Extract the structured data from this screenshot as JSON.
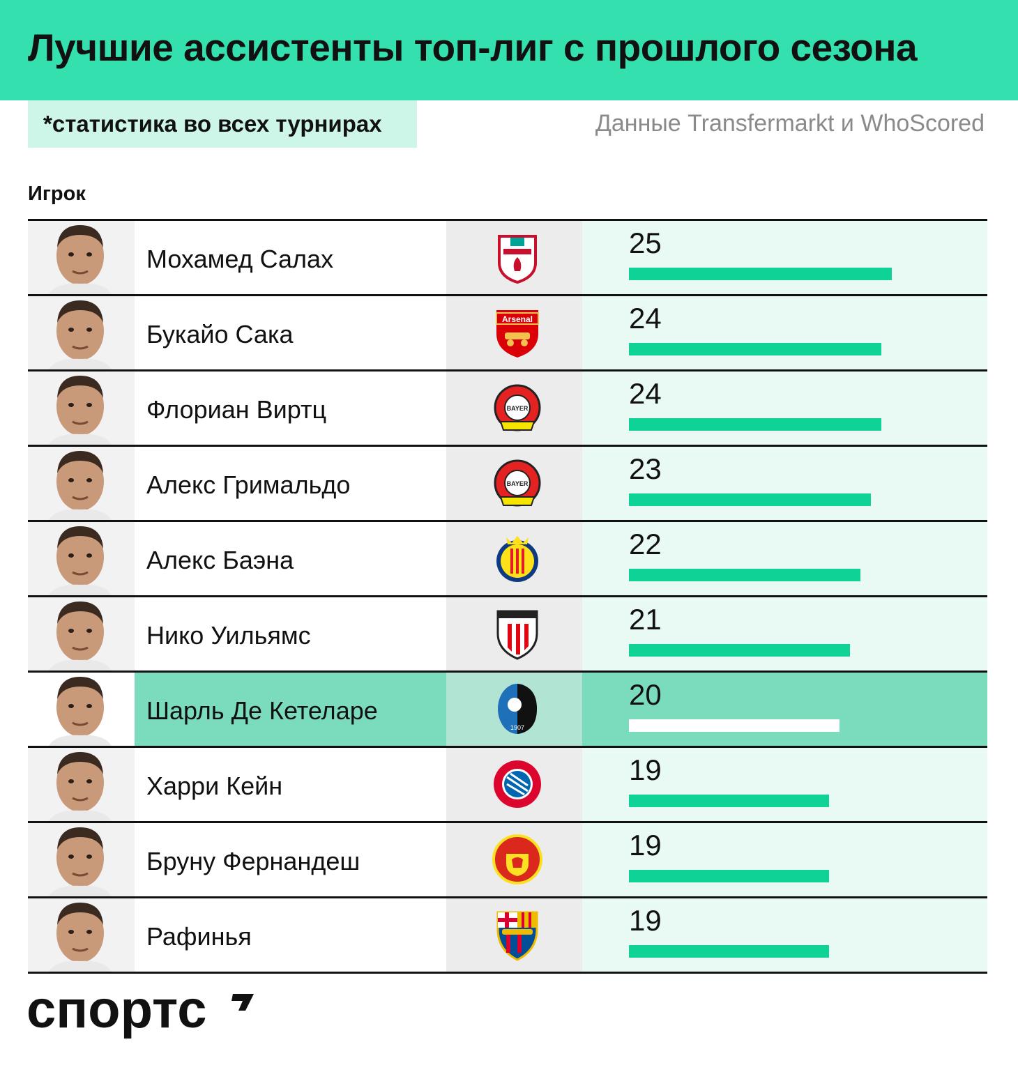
{
  "header": {
    "title": "Лучшие ассистенты топ-лиг с прошлого сезона",
    "note": "*статистика во всех турнирах",
    "source": "Данные Transfermarkt и WhoScored"
  },
  "table": {
    "column_player": "Игрок"
  },
  "brand": {
    "logo_text": "спортс",
    "accent": "#34e0ad",
    "bar_color": "#0fd296",
    "highlight_color": "#7bdcbd"
  },
  "chart_data": {
    "type": "bar",
    "orientation": "horizontal",
    "title": "Лучшие ассистенты топ-лиг с прошлого сезона",
    "categories": [
      "Мохамед Салах",
      "Букайо Сака",
      "Флориан Виртц",
      "Алекс Гримальдо",
      "Алекс Баэна",
      "Нико Уильямс",
      "Шарль Де Кетеларе",
      "Харри Кейн",
      "Бруну Фернандеш",
      "Рафинья"
    ],
    "values": [
      25,
      24,
      24,
      23,
      22,
      21,
      20,
      19,
      19,
      19
    ],
    "xlim": [
      0,
      25
    ],
    "highlighted": "Шарль Де Кетеларе",
    "clubs": [
      "liverpool-crest",
      "arsenal-crest",
      "leverkusen-crest",
      "leverkusen-crest",
      "villarreal-crest",
      "athletic-bilbao-crest",
      "atalanta-crest",
      "bayern-crest",
      "manchester-united-crest",
      "barcelona-crest"
    ],
    "grid": false,
    "legend": "none"
  }
}
